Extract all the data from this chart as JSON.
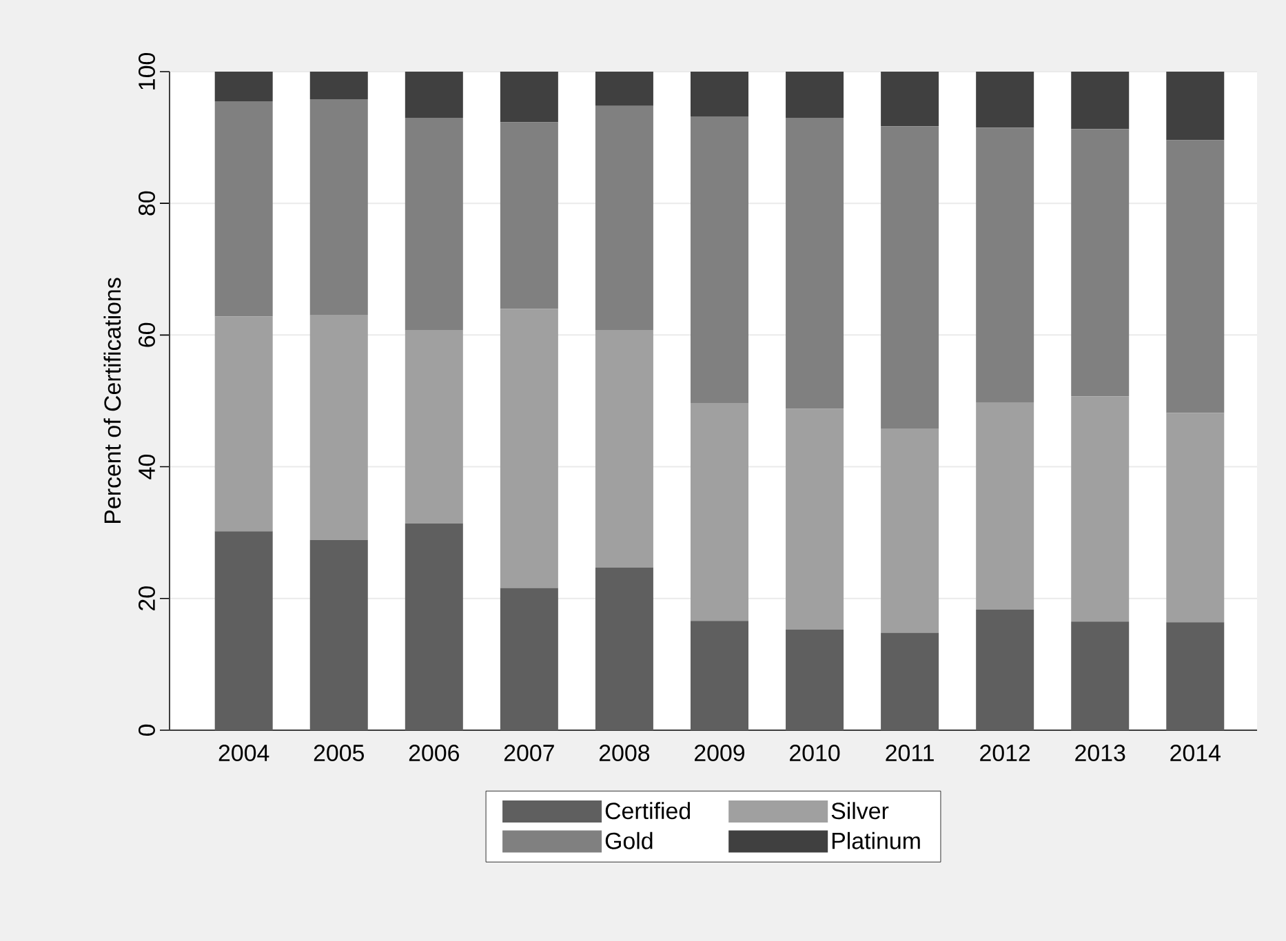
{
  "chart_data": {
    "type": "bar",
    "stacked": true,
    "ylabel": "Percent of Certifications",
    "categories": [
      "2004",
      "2005",
      "2006",
      "2007",
      "2008",
      "2009",
      "2010",
      "2011",
      "2012",
      "2013",
      "2014"
    ],
    "series": [
      {
        "name": "Certified",
        "color": "#5f5f5f",
        "values": [
          30.2,
          28.9,
          31.4,
          21.6,
          24.7,
          16.6,
          15.3,
          14.8,
          18.3,
          16.5,
          16.4
        ]
      },
      {
        "name": "Silver",
        "color": "#a0a0a0",
        "values": [
          32.6,
          34.1,
          29.3,
          42.4,
          36.0,
          33.0,
          33.5,
          31.0,
          31.5,
          34.2,
          31.8
        ]
      },
      {
        "name": "Gold",
        "color": "#808080",
        "values": [
          32.7,
          32.8,
          32.3,
          28.3,
          34.1,
          43.6,
          44.2,
          45.9,
          41.7,
          40.6,
          41.4
        ]
      },
      {
        "name": "Platinum",
        "color": "#404040",
        "values": [
          4.5,
          4.2,
          7.0,
          7.7,
          5.2,
          6.8,
          7.0,
          8.3,
          8.5,
          8.7,
          10.4
        ]
      }
    ],
    "ylim": [
      0,
      100
    ],
    "yticks": [
      0,
      20,
      40,
      60,
      80,
      100
    ],
    "grid": "y",
    "legend": "bottom"
  }
}
